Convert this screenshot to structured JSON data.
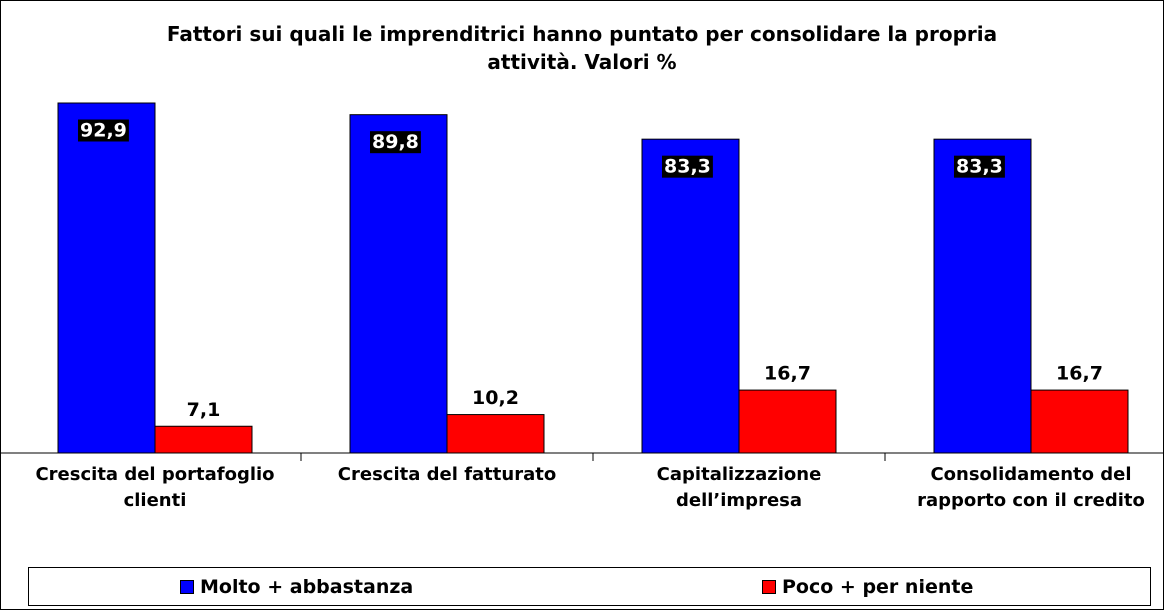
{
  "chart_data": {
    "type": "bar",
    "title": "Fattori sui quali le imprenditrici hanno puntato per consolidare la propria attività. Valori %",
    "categories": [
      "Crescita del portafoglio clienti",
      "Crescita del fatturato",
      "Capitalizzazione dell’impresa",
      "Consolidamento del rapporto con il credito"
    ],
    "series": [
      {
        "name": "Molto + abbastanza",
        "color": "#0000ff",
        "values": [
          92.9,
          89.8,
          83.3,
          83.3
        ],
        "value_labels": [
          "92,9",
          "89,8",
          "83,3",
          "83,3"
        ]
      },
      {
        "name": "Poco + per niente",
        "color": "#ff0000",
        "values": [
          7.1,
          10.2,
          16.7,
          16.7
        ],
        "value_labels": [
          "7,1",
          "10,2",
          "16,7",
          "16,7"
        ]
      }
    ],
    "legend": "bottom"
  }
}
